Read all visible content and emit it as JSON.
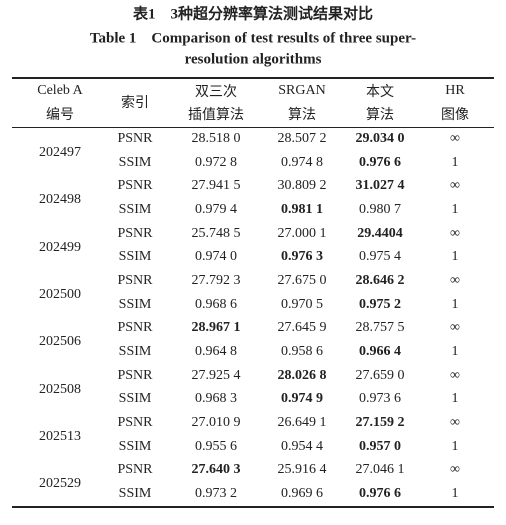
{
  "title": {
    "cn": "表1　3种超分辨率算法测试结果对比",
    "en_line1": "Table 1　Comparison of test results of three super-",
    "en_line2": "resolution algorithms"
  },
  "table": {
    "header": [
      [
        "Celeb A",
        "编号"
      ],
      [
        "索引"
      ],
      [
        "双三次",
        "插值算法"
      ],
      [
        "SRGAN",
        "算法"
      ],
      [
        "本文",
        "算法"
      ],
      [
        "HR",
        "图像"
      ]
    ],
    "groups": [
      {
        "id": "202497",
        "rows": [
          {
            "metric": "PSNR",
            "cells": [
              "28.518 0",
              "28.507 2",
              "29.034 0",
              "∞"
            ],
            "bold": 2
          },
          {
            "metric": "SSIM",
            "cells": [
              "0.972 8",
              "0.974 8",
              "0.976 6",
              "1"
            ],
            "bold": 2
          }
        ]
      },
      {
        "id": "202498",
        "rows": [
          {
            "metric": "PSNR",
            "cells": [
              "27.941 5",
              "30.809 2",
              "31.027 4",
              "∞"
            ],
            "bold": 2
          },
          {
            "metric": "SSIM",
            "cells": [
              "0.979 4",
              "0.981 1",
              "0.980 7",
              "1"
            ],
            "bold": 1
          }
        ]
      },
      {
        "id": "202499",
        "rows": [
          {
            "metric": "PSNR",
            "cells": [
              "25.748 5",
              "27.000 1",
              "29.4404",
              "∞"
            ],
            "bold": 2
          },
          {
            "metric": "SSIM",
            "cells": [
              "0.974 0",
              "0.976 3",
              "0.975 4",
              "1"
            ],
            "bold": 1
          }
        ]
      },
      {
        "id": "202500",
        "rows": [
          {
            "metric": "PSNR",
            "cells": [
              "27.792 3",
              "27.675 0",
              "28.646 2",
              "∞"
            ],
            "bold": 2
          },
          {
            "metric": "SSIM",
            "cells": [
              "0.968 6",
              "0.970 5",
              "0.975 2",
              "1"
            ],
            "bold": 2
          }
        ]
      },
      {
        "id": "202506",
        "rows": [
          {
            "metric": "PSNR",
            "cells": [
              "28.967 1",
              "27.645 9",
              "28.757 5",
              "∞"
            ],
            "bold": 0
          },
          {
            "metric": "SSIM",
            "cells": [
              "0.964 8",
              "0.958 6",
              "0.966 4",
              "1"
            ],
            "bold": 2
          }
        ]
      },
      {
        "id": "202508",
        "rows": [
          {
            "metric": "PSNR",
            "cells": [
              "27.925 4",
              "28.026 8",
              "27.659 0",
              "∞"
            ],
            "bold": 1
          },
          {
            "metric": "SSIM",
            "cells": [
              "0.968 3",
              "0.974 9",
              "0.973 6",
              "1"
            ],
            "bold": 1
          }
        ]
      },
      {
        "id": "202513",
        "rows": [
          {
            "metric": "PSNR",
            "cells": [
              "27.010 9",
              "26.649 1",
              "27.159 2",
              "∞"
            ],
            "bold": 2
          },
          {
            "metric": "SSIM",
            "cells": [
              "0.955 6",
              "0.954 4",
              "0.957 0",
              "1"
            ],
            "bold": 2
          }
        ]
      },
      {
        "id": "202529",
        "rows": [
          {
            "metric": "PSNR",
            "cells": [
              "27.640 3",
              "25.916 4",
              "27.046 1",
              "∞"
            ],
            "bold": 0
          },
          {
            "metric": "SSIM",
            "cells": [
              "0.973 2",
              "0.969 6",
              "0.976 6",
              "1"
            ],
            "bold": 2
          }
        ]
      }
    ]
  }
}
